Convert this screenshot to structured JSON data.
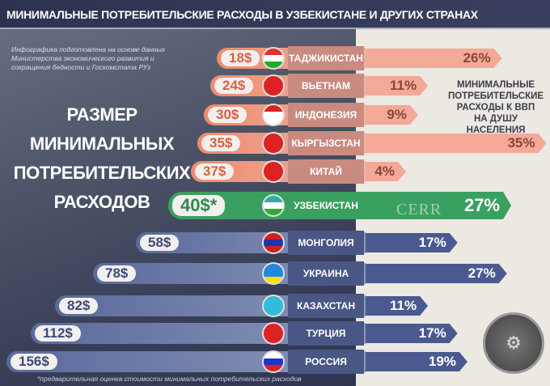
{
  "header": {
    "title": "МИНИМАЛЬНЫЕ ПОТРЕБИТЕЛЬСКИЕ РАСХОДЫ В УЗБЕКИСТАНЕ И ДРУГИХ СТРАНАХ"
  },
  "source": "Инфографика подготовлена на основе данных Министерства экономического развития и сокращения бедности и Госкомстата РУз",
  "footnote": "*предварительная оценка стоимости минимальных потребительских расходов",
  "cerr_logo": "CERR",
  "chart_data": {
    "type": "bar",
    "title": "МИНИМАЛЬНЫЕ ПОТРЕБИТЕЛЬСКИЕ РАСХОДЫ В УЗБЕКИСТАНЕ И ДРУГИХ СТРАНАХ",
    "left_title": [
      "РАЗМЕР",
      "МИНИМАЛЬНЫХ",
      "ПОТРЕБИТЕЛЬСКИХ",
      "РАСХОДОВ"
    ],
    "right_title": [
      "МИНИМАЛЬНЫЕ",
      "ПОТРЕБИТЕЛЬСКИЕ",
      "РАСХОДЫ К ВВП",
      "НА ДУШУ НАСЕЛЕНИЯ"
    ],
    "categories": [
      "ТАДЖИКИСТАН",
      "ВЬЕТНАМ",
      "ИНДОНЕЗИЯ",
      "КЫРГЫЗСТАН",
      "КИТАЙ",
      "УЗБЕКИСТАН",
      "МОНГОЛИЯ",
      "УКРАИНА",
      "КАЗАХСТАН",
      "ТУРЦИЯ",
      "РОССИЯ"
    ],
    "series": [
      {
        "name": "Размер минимальных потребительских расходов ($)",
        "values": [
          18,
          24,
          30,
          35,
          37,
          40,
          58,
          78,
          82,
          112,
          156
        ],
        "labels": [
          "18$",
          "24$",
          "30$",
          "35$",
          "37$",
          "40$*",
          "58$",
          "78$",
          "82$",
          "112$",
          "156$"
        ]
      },
      {
        "name": "Минимальные потребительские расходы к ВВП на душу населения (%)",
        "values": [
          26,
          11,
          9,
          35,
          4,
          27,
          17,
          27,
          11,
          17,
          19
        ],
        "labels": [
          "26%",
          "11%",
          "9%",
          "35%",
          "4%",
          "27%",
          "17%",
          "27%",
          "11%",
          "17%",
          "19%"
        ]
      }
    ],
    "colors": {
      "low": "#f08a6c",
      "highlight": "#3aa060",
      "high": "#5a6a9c"
    }
  }
}
